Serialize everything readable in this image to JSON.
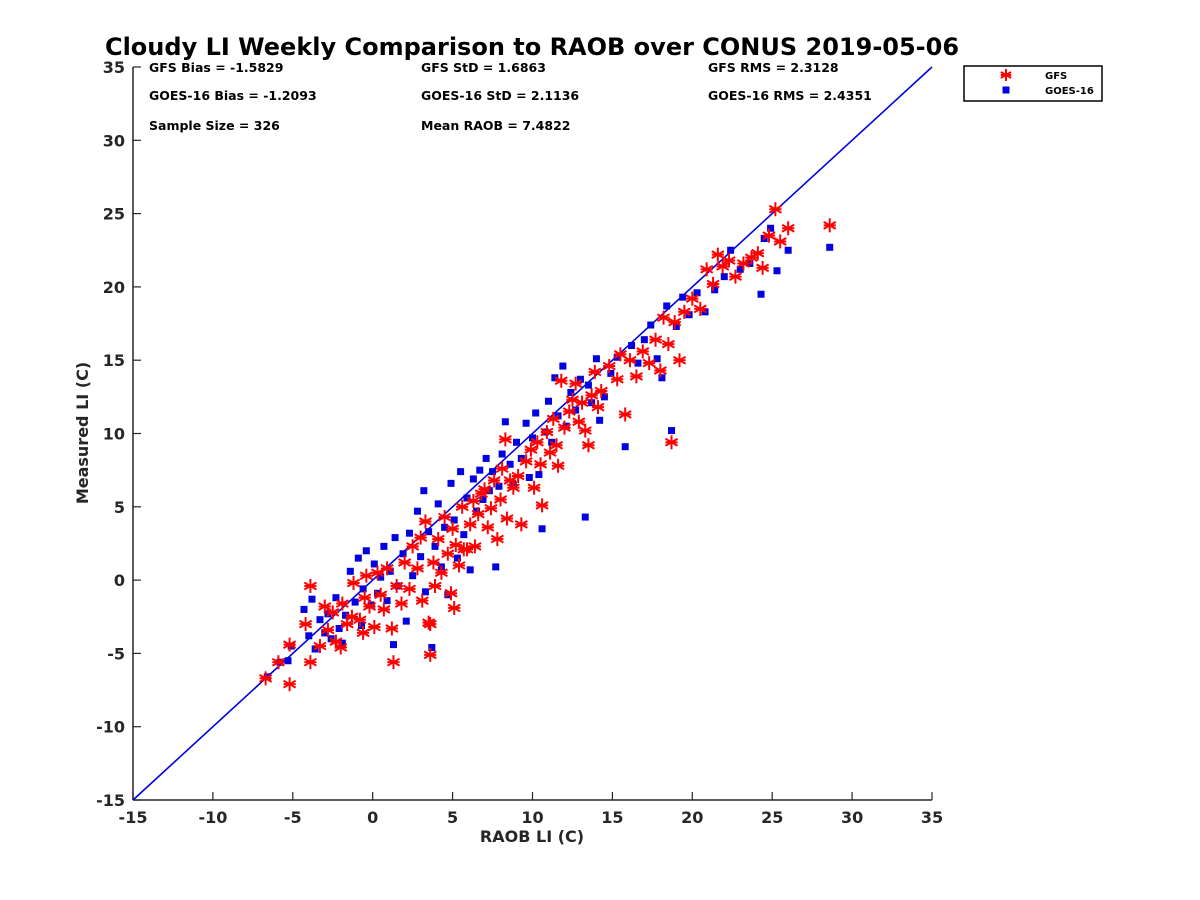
{
  "chart_data": {
    "type": "scatter",
    "title": "Cloudy LI Weekly Comparison to RAOB over CONUS 2019-05-06",
    "xlabel": "RAOB LI (C)",
    "ylabel": "Measured LI (C)",
    "xlim": [
      -15,
      35
    ],
    "ylim": [
      -15,
      35
    ],
    "xticks": [
      "-15",
      "-10",
      "-5",
      "0",
      "5",
      "10",
      "15",
      "20",
      "25",
      "30",
      "35"
    ],
    "yticks": [
      "-15",
      "-10",
      "-5",
      "0",
      "5",
      "10",
      "15",
      "20",
      "25",
      "30",
      "35"
    ],
    "grid": false,
    "legend_position": "top-right-outside",
    "reference_line": {
      "from": [
        -15,
        -15
      ],
      "to": [
        35,
        35
      ],
      "color": "#0000e0"
    },
    "stats": [
      [
        "GFS Bias = -1.5829",
        "GFS StD = 1.6863",
        "GFS RMS = 2.3128"
      ],
      [
        "GOES-16 Bias = -1.2093",
        "GOES-16 StD = 2.1136",
        "GOES-16 RMS = 2.4351"
      ],
      [
        "Sample Size = 326",
        "Mean RAOB = 7.4822",
        ""
      ]
    ],
    "series": [
      {
        "name": "GFS",
        "marker": "asterisk",
        "color": "#ff0000",
        "points": [
          [
            -6.7,
            -6.7
          ],
          [
            -5.9,
            -5.6
          ],
          [
            -5.2,
            -7.1
          ],
          [
            -5.2,
            -4.4
          ],
          [
            -4.2,
            -3.0
          ],
          [
            -3.9,
            -0.4
          ],
          [
            -3.9,
            -5.6
          ],
          [
            -3.3,
            -4.5
          ],
          [
            -3.0,
            -1.8
          ],
          [
            -2.8,
            -3.4
          ],
          [
            -2.5,
            -2.2
          ],
          [
            -2.3,
            -4.2
          ],
          [
            -2.0,
            -4.6
          ],
          [
            -1.9,
            -1.6
          ],
          [
            -1.6,
            -3.0
          ],
          [
            -1.3,
            -2.5
          ],
          [
            -1.2,
            -0.2
          ],
          [
            -0.8,
            -2.7
          ],
          [
            -0.6,
            -3.6
          ],
          [
            -0.5,
            -1.2
          ],
          [
            -0.4,
            0.3
          ],
          [
            -0.2,
            -1.8
          ],
          [
            0.1,
            -3.2
          ],
          [
            0.3,
            0.5
          ],
          [
            0.5,
            -1.0
          ],
          [
            0.7,
            -2.0
          ],
          [
            0.9,
            0.8
          ],
          [
            1.2,
            -3.3
          ],
          [
            1.3,
            -5.6
          ],
          [
            1.5,
            -0.4
          ],
          [
            1.8,
            -1.6
          ],
          [
            2.0,
            1.2
          ],
          [
            2.3,
            -0.6
          ],
          [
            2.5,
            2.3
          ],
          [
            2.8,
            0.8
          ],
          [
            3.0,
            2.9
          ],
          [
            3.1,
            -1.4
          ],
          [
            3.3,
            4.0
          ],
          [
            3.5,
            -2.9
          ],
          [
            3.6,
            -3.0
          ],
          [
            3.6,
            -5.1
          ],
          [
            3.8,
            1.2
          ],
          [
            3.9,
            -0.4
          ],
          [
            4.1,
            2.8
          ],
          [
            4.3,
            0.5
          ],
          [
            4.5,
            4.3
          ],
          [
            4.7,
            1.8
          ],
          [
            4.9,
            -0.9
          ],
          [
            5.0,
            3.5
          ],
          [
            5.1,
            -1.9
          ],
          [
            5.2,
            2.4
          ],
          [
            5.4,
            1.0
          ],
          [
            5.6,
            5.0
          ],
          [
            5.7,
            2.1
          ],
          [
            5.9,
            2.1
          ],
          [
            6.1,
            3.8
          ],
          [
            6.3,
            5.4
          ],
          [
            6.4,
            2.3
          ],
          [
            6.6,
            4.5
          ],
          [
            6.8,
            5.9
          ],
          [
            7.0,
            6.2
          ],
          [
            7.2,
            3.6
          ],
          [
            7.4,
            4.9
          ],
          [
            7.6,
            6.8
          ],
          [
            7.8,
            2.8
          ],
          [
            8.0,
            5.5
          ],
          [
            8.1,
            7.6
          ],
          [
            8.3,
            9.6
          ],
          [
            8.4,
            4.2
          ],
          [
            8.6,
            6.8
          ],
          [
            8.8,
            6.3
          ],
          [
            9.1,
            7.1
          ],
          [
            9.3,
            3.8
          ],
          [
            9.6,
            8.1
          ],
          [
            9.9,
            8.9
          ],
          [
            10.1,
            6.3
          ],
          [
            10.3,
            9.4
          ],
          [
            10.5,
            7.9
          ],
          [
            10.6,
            5.1
          ],
          [
            10.9,
            10.1
          ],
          [
            11.1,
            8.7
          ],
          [
            11.3,
            11.0
          ],
          [
            11.5,
            9.2
          ],
          [
            11.6,
            7.8
          ],
          [
            11.8,
            13.6
          ],
          [
            12.0,
            10.4
          ],
          [
            12.3,
            11.5
          ],
          [
            12.5,
            12.3
          ],
          [
            12.7,
            13.4
          ],
          [
            12.9,
            10.8
          ],
          [
            13.1,
            12.1
          ],
          [
            13.3,
            10.2
          ],
          [
            13.5,
            9.2
          ],
          [
            13.7,
            12.6
          ],
          [
            13.9,
            14.2
          ],
          [
            14.1,
            11.8
          ],
          [
            14.3,
            12.9
          ],
          [
            14.8,
            14.6
          ],
          [
            15.3,
            13.7
          ],
          [
            15.5,
            15.4
          ],
          [
            15.8,
            11.3
          ],
          [
            16.1,
            15.0
          ],
          [
            16.5,
            13.9
          ],
          [
            16.9,
            15.6
          ],
          [
            17.3,
            14.8
          ],
          [
            17.7,
            16.4
          ],
          [
            18.0,
            14.3
          ],
          [
            18.2,
            17.9
          ],
          [
            18.5,
            16.1
          ],
          [
            18.7,
            9.4
          ],
          [
            18.9,
            17.6
          ],
          [
            19.2,
            15.0
          ],
          [
            19.5,
            18.3
          ],
          [
            20.0,
            19.2
          ],
          [
            20.5,
            18.5
          ],
          [
            20.9,
            21.2
          ],
          [
            21.3,
            20.2
          ],
          [
            21.6,
            22.2
          ],
          [
            21.9,
            21.4
          ],
          [
            22.3,
            21.8
          ],
          [
            22.7,
            20.7
          ],
          [
            23.2,
            21.6
          ],
          [
            23.7,
            22.0
          ],
          [
            24.1,
            22.3
          ],
          [
            24.4,
            21.3
          ],
          [
            24.8,
            23.5
          ],
          [
            25.2,
            25.3
          ],
          [
            25.5,
            23.1
          ],
          [
            26.0,
            24.0
          ],
          [
            28.6,
            24.2
          ]
        ]
      },
      {
        "name": "GOES-16",
        "marker": "square",
        "color": "#0000e0",
        "points": [
          [
            -6.6,
            -6.6
          ],
          [
            -5.8,
            -5.6
          ],
          [
            -5.3,
            -5.5
          ],
          [
            -5.1,
            -4.5
          ],
          [
            -4.3,
            -2.0
          ],
          [
            -4.0,
            -3.8
          ],
          [
            -3.8,
            -1.3
          ],
          [
            -3.6,
            -4.7
          ],
          [
            -3.3,
            -2.7
          ],
          [
            -3.0,
            -3.6
          ],
          [
            -2.8,
            -2.3
          ],
          [
            -2.6,
            -4.0
          ],
          [
            -2.3,
            -1.2
          ],
          [
            -2.1,
            -3.3
          ],
          [
            -1.9,
            -4.3
          ],
          [
            -1.7,
            -2.4
          ],
          [
            -1.4,
            0.6
          ],
          [
            -1.1,
            -1.5
          ],
          [
            -0.9,
            1.5
          ],
          [
            -0.7,
            -3.1
          ],
          [
            -0.6,
            -0.6
          ],
          [
            -0.4,
            2.0
          ],
          [
            -0.1,
            -1.7
          ],
          [
            0.1,
            1.1
          ],
          [
            0.3,
            -0.9
          ],
          [
            0.5,
            0.2
          ],
          [
            0.7,
            2.3
          ],
          [
            0.9,
            -1.4
          ],
          [
            1.1,
            0.6
          ],
          [
            1.3,
            -4.4
          ],
          [
            1.4,
            2.9
          ],
          [
            1.6,
            -0.4
          ],
          [
            1.9,
            1.8
          ],
          [
            2.1,
            -2.8
          ],
          [
            2.3,
            3.2
          ],
          [
            2.5,
            0.3
          ],
          [
            2.8,
            4.7
          ],
          [
            3.0,
            1.6
          ],
          [
            3.2,
            6.1
          ],
          [
            3.3,
            -0.8
          ],
          [
            3.5,
            3.3
          ],
          [
            3.7,
            -4.6
          ],
          [
            3.9,
            2.3
          ],
          [
            4.1,
            5.2
          ],
          [
            4.3,
            0.9
          ],
          [
            4.5,
            3.6
          ],
          [
            4.7,
            -1.0
          ],
          [
            4.9,
            6.6
          ],
          [
            5.1,
            4.1
          ],
          [
            5.3,
            1.5
          ],
          [
            5.5,
            7.4
          ],
          [
            5.7,
            3.1
          ],
          [
            5.9,
            5.6
          ],
          [
            6.1,
            0.7
          ],
          [
            6.3,
            6.9
          ],
          [
            6.5,
            4.7
          ],
          [
            6.7,
            7.5
          ],
          [
            6.9,
            5.5
          ],
          [
            7.1,
            8.3
          ],
          [
            7.3,
            6.1
          ],
          [
            7.5,
            7.4
          ],
          [
            7.7,
            0.9
          ],
          [
            7.9,
            6.4
          ],
          [
            8.1,
            8.6
          ],
          [
            8.3,
            10.8
          ],
          [
            8.6,
            7.9
          ],
          [
            8.8,
            6.5
          ],
          [
            9.0,
            9.4
          ],
          [
            9.3,
            8.3
          ],
          [
            9.6,
            10.7
          ],
          [
            9.8,
            7.0
          ],
          [
            10.0,
            9.7
          ],
          [
            10.2,
            11.4
          ],
          [
            10.4,
            7.2
          ],
          [
            10.6,
            3.5
          ],
          [
            10.8,
            10.1
          ],
          [
            11.0,
            12.2
          ],
          [
            11.2,
            9.4
          ],
          [
            11.4,
            13.8
          ],
          [
            11.6,
            11.2
          ],
          [
            11.9,
            14.6
          ],
          [
            12.1,
            10.5
          ],
          [
            12.4,
            12.8
          ],
          [
            12.7,
            11.6
          ],
          [
            13.0,
            13.7
          ],
          [
            13.3,
            4.3
          ],
          [
            13.5,
            13.3
          ],
          [
            13.7,
            12.1
          ],
          [
            14.0,
            15.1
          ],
          [
            14.2,
            10.9
          ],
          [
            14.5,
            12.5
          ],
          [
            14.9,
            14.1
          ],
          [
            15.3,
            15.2
          ],
          [
            15.8,
            9.1
          ],
          [
            16.2,
            16.0
          ],
          [
            16.6,
            14.8
          ],
          [
            17.0,
            16.4
          ],
          [
            17.4,
            17.4
          ],
          [
            17.8,
            15.1
          ],
          [
            18.1,
            13.8
          ],
          [
            18.4,
            18.7
          ],
          [
            18.7,
            10.2
          ],
          [
            19.0,
            17.3
          ],
          [
            19.4,
            19.3
          ],
          [
            19.8,
            18.1
          ],
          [
            20.3,
            19.6
          ],
          [
            20.8,
            18.3
          ],
          [
            21.4,
            19.8
          ],
          [
            22.0,
            20.7
          ],
          [
            22.4,
            22.5
          ],
          [
            23.0,
            21.2
          ],
          [
            23.6,
            21.6
          ],
          [
            24.3,
            19.5
          ],
          [
            24.5,
            23.3
          ],
          [
            24.9,
            24.0
          ],
          [
            25.3,
            21.1
          ],
          [
            26.0,
            22.5
          ],
          [
            28.6,
            22.7
          ]
        ]
      }
    ]
  }
}
